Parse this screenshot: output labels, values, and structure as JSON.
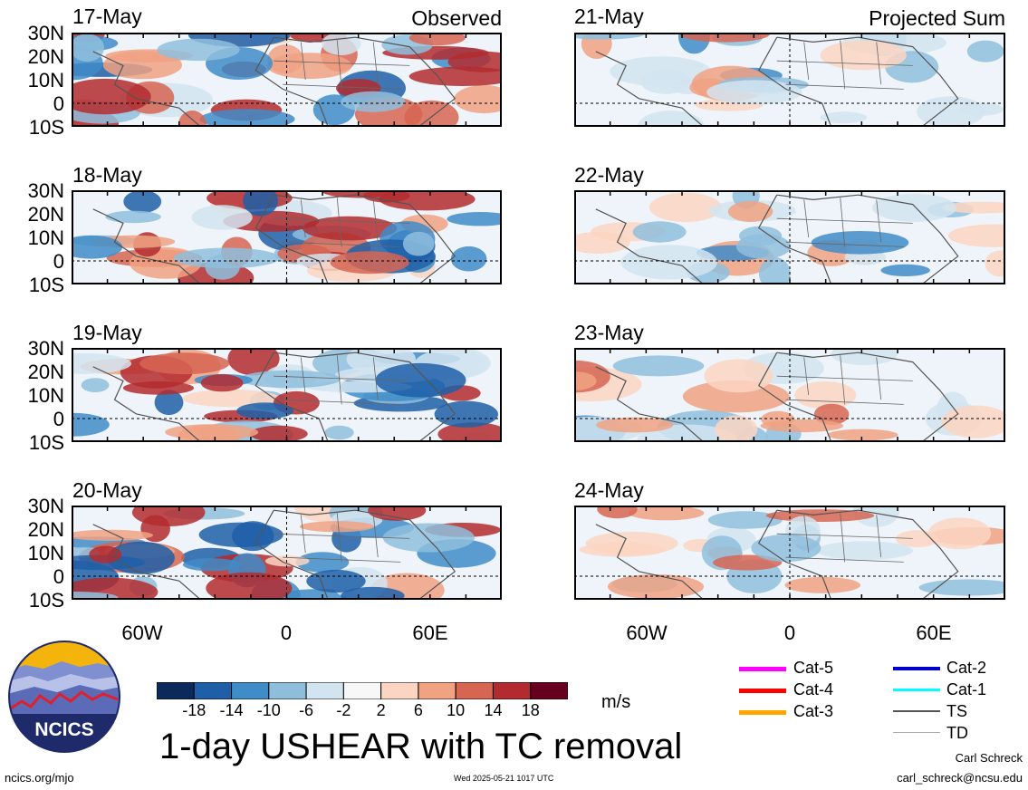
{
  "panels": {
    "observed_label": "Observed",
    "projected_label": "Projected Sum",
    "left": [
      {
        "date": "17-May"
      },
      {
        "date": "18-May"
      },
      {
        "date": "19-May"
      },
      {
        "date": "20-May"
      }
    ],
    "right": [
      {
        "date": "21-May"
      },
      {
        "date": "22-May"
      },
      {
        "date": "23-May"
      },
      {
        "date": "24-May"
      }
    ]
  },
  "axes": {
    "lat_labels": [
      "30N",
      "20N",
      "10N",
      "0",
      "10S"
    ],
    "lon_labels": [
      "60W",
      "0",
      "60E"
    ]
  },
  "colorbar": {
    "ticks": [
      "-18",
      "-14",
      "-10",
      "-6",
      "-2",
      "2",
      "6",
      "10",
      "14",
      "18"
    ],
    "colors": [
      "#0b2a5b",
      "#1e5fa8",
      "#3f8cc8",
      "#8fbedd",
      "#d2e4f0",
      "#f7f7f7",
      "#fbd5c2",
      "#f0a283",
      "#d66552",
      "#b32b2f",
      "#67001f"
    ],
    "unit": "m/s"
  },
  "title": "1-day USHEAR with TC removal",
  "logo_text": "NCICS",
  "footer": {
    "left": "ncics.org/mjo",
    "timestamp": "Wed 2025-05-21 1017 UTC",
    "author": "Carl Schreck",
    "email": "carl_schreck@ncsu.edu"
  },
  "legend": [
    {
      "label": "Cat-5",
      "color": "#ff00ff"
    },
    {
      "label": "Cat-4",
      "color": "#ff0000"
    },
    {
      "label": "Cat-3",
      "color": "#ffa500"
    },
    {
      "label": "Cat-2",
      "color": "#0000cc"
    },
    {
      "label": "Cat-1",
      "color": "#00ffff"
    },
    {
      "label": "TS",
      "color": "#555555"
    },
    {
      "label": "TD",
      "color": "#aaaaaa"
    }
  ]
}
